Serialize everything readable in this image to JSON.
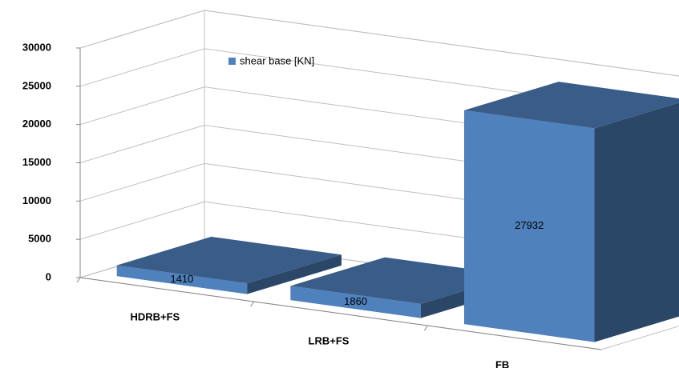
{
  "chart_data": {
    "type": "bar3d",
    "categories": [
      "HDRB+FS",
      "LRB+FS",
      "FB"
    ],
    "series": [
      {
        "name": "shear base [KN]",
        "color": "#4f81bd",
        "values": [
          1410,
          1860,
          27932
        ]
      }
    ],
    "ylim": [
      0,
      30000
    ],
    "yticks": [
      0,
      5000,
      10000,
      15000,
      20000,
      25000,
      30000
    ],
    "grid": true,
    "legend": "top-left",
    "data_labels": true
  }
}
